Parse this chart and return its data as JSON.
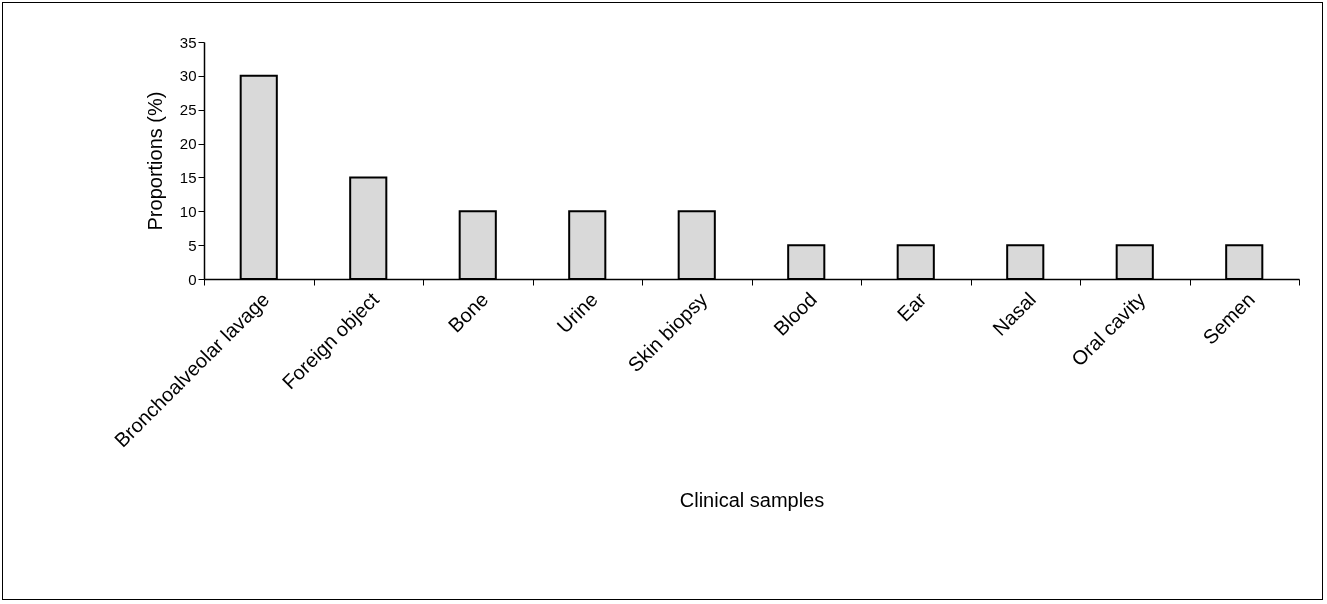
{
  "chart_data": {
    "type": "bar",
    "xlabel": "Clinical samples",
    "ylabel": "Proportions (%)",
    "categories": [
      "Bronchoalveolar lavage",
      "Foreign object",
      "Bone",
      "Urine",
      "Skin biopsy",
      "Blood",
      "Ear",
      "Nasal",
      "Oral cavity",
      "Semen"
    ],
    "values": [
      30,
      15,
      10,
      10,
      10,
      5,
      5,
      5,
      5,
      5
    ],
    "color": "#d9d9d9",
    "ylim": [
      0,
      35
    ],
    "yticks": [
      0,
      5,
      10,
      15,
      20,
      25,
      30,
      35
    ],
    "grid": false
  }
}
